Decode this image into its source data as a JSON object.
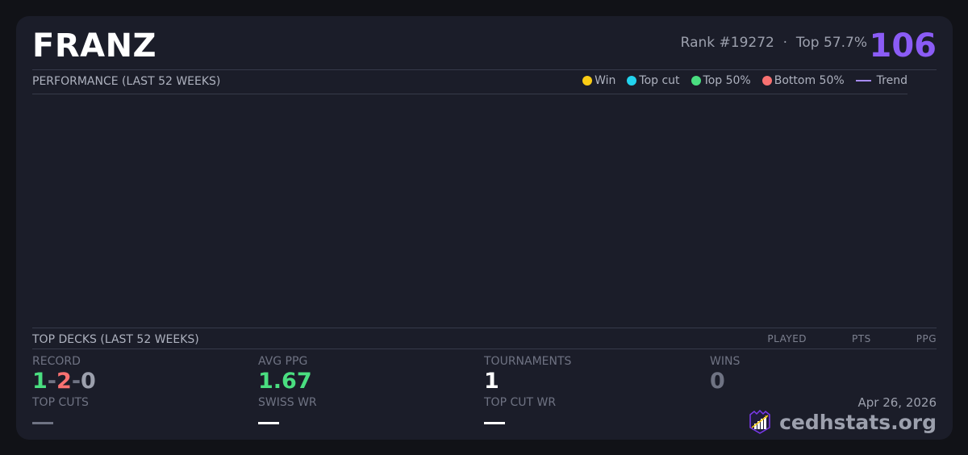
{
  "player": {
    "name": "FRANZ",
    "rank": "Rank #19272",
    "separator": "·",
    "top_percent": "Top 57.7%",
    "score": "106"
  },
  "performance": {
    "title": "PERFORMANCE (LAST 52 WEEKS)",
    "legend": [
      {
        "label": "Win",
        "color": "#facc15"
      },
      {
        "label": "Top cut",
        "color": "#22d3ee"
      },
      {
        "label": "Top 50%",
        "color": "#4ade80"
      },
      {
        "label": "Bottom 50%",
        "color": "#f87171"
      },
      {
        "label": "Trend",
        "color": "#a78bfa"
      }
    ]
  },
  "top_decks": {
    "title": "TOP DECKS (LAST 52 WEEKS)",
    "columns": [
      "PLAYED",
      "PTS",
      "PPG"
    ]
  },
  "stats": {
    "record": {
      "label": "RECORD",
      "wins": "1",
      "losses": "2",
      "draws": "0",
      "sep": "-"
    },
    "avg_ppg": {
      "label": "AVG PPG",
      "value": "1.67"
    },
    "tournaments": {
      "label": "TOURNAMENTS",
      "value": "1"
    },
    "wins": {
      "label": "WINS",
      "value": "0"
    },
    "top_cuts": {
      "label": "TOP CUTS",
      "value": "—"
    },
    "swiss_wr": {
      "label": "SWISS WR",
      "value": "—"
    },
    "top_cut_wr": {
      "label": "TOP CUT WR",
      "value": "—"
    }
  },
  "footer": {
    "date": "Apr 26, 2026",
    "brand": "cedhstats.org"
  }
}
